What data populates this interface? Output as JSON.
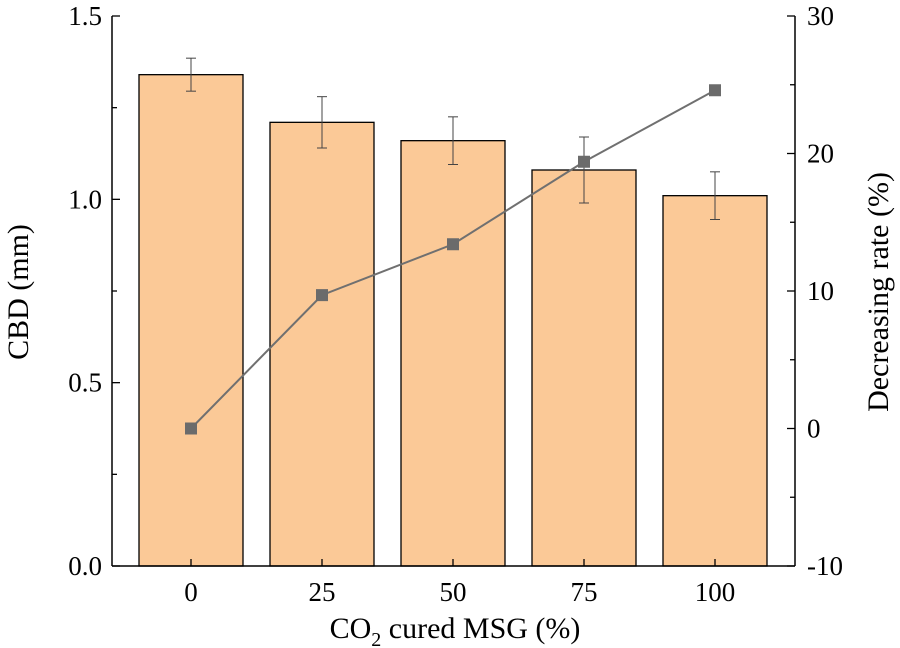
{
  "chart_data": {
    "type": "bar",
    "xlabel": {
      "main": "CO",
      "sub": "2",
      "rest": " cured MSG (%)"
    },
    "ylabel_left": "CBD (mm)",
    "ylabel_right": "Decreasing rate (%)",
    "categories": [
      "0",
      "25",
      "50",
      "75",
      "100"
    ],
    "left_ylim": [
      0,
      1.5
    ],
    "left_ticks": [
      "0.0",
      "0.5",
      "1.0",
      "1.5"
    ],
    "right_ylim": [
      -10,
      30
    ],
    "right_ticks": [
      "-10",
      "0",
      "10",
      "20",
      "30"
    ],
    "series": [
      {
        "kind": "bar",
        "axis": "left",
        "values": [
          1.34,
          1.21,
          1.16,
          1.08,
          1.01
        ],
        "errors": [
          0.045,
          0.07,
          0.065,
          0.09,
          0.065
        ]
      },
      {
        "kind": "line",
        "axis": "right",
        "marker": "square",
        "values": [
          0,
          9.7,
          13.4,
          19.4,
          24.6
        ]
      }
    ],
    "colors": {
      "bar_fill": "#FBC997",
      "line": "#707070",
      "marker": "#6b6b6b",
      "axis": "#000000"
    },
    "grid": false
  }
}
